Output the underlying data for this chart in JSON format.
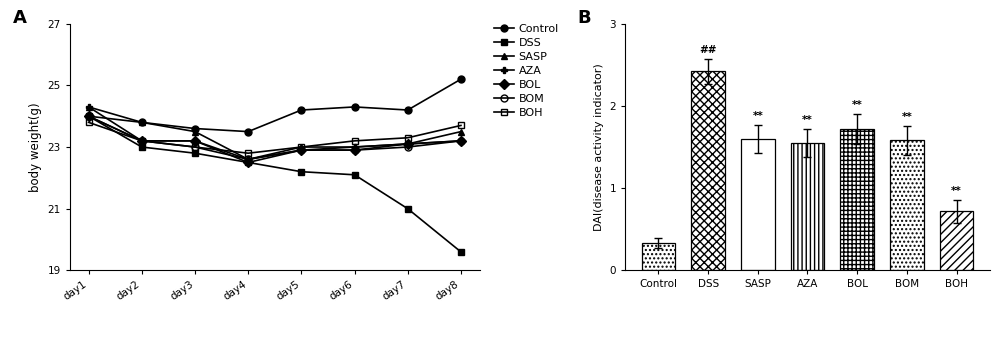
{
  "line_chart": {
    "days": [
      "day1",
      "day2",
      "day3",
      "day4",
      "day5",
      "day6",
      "day7",
      "day8"
    ],
    "series": {
      "Control": [
        24.0,
        23.8,
        23.6,
        23.5,
        24.2,
        24.3,
        24.2,
        25.2
      ],
      "DSS": [
        24.0,
        23.0,
        22.8,
        22.5,
        22.2,
        22.1,
        21.0,
        19.6
      ],
      "SASP": [
        24.3,
        23.8,
        23.5,
        22.6,
        23.0,
        23.0,
        23.1,
        23.5
      ],
      "AZA": [
        24.3,
        23.2,
        23.2,
        22.6,
        22.9,
        23.0,
        23.1,
        23.2
      ],
      "BOL": [
        24.0,
        23.2,
        23.2,
        22.5,
        22.9,
        22.9,
        23.1,
        23.2
      ],
      "BOM": [
        24.0,
        23.2,
        23.0,
        22.6,
        22.9,
        22.9,
        23.0,
        23.2
      ],
      "BOH": [
        23.8,
        23.2,
        23.0,
        22.8,
        23.0,
        23.2,
        23.3,
        23.7
      ]
    },
    "markers": [
      "o",
      "s",
      "^",
      "P",
      "D",
      "o",
      "s"
    ],
    "fillstyle": [
      "full",
      "full",
      "full",
      "full",
      "full",
      "none",
      "none"
    ],
    "series_order": [
      "Control",
      "DSS",
      "SASP",
      "AZA",
      "BOL",
      "BOM",
      "BOH"
    ],
    "ylim": [
      19,
      27
    ],
    "yticks": [
      19,
      21,
      23,
      25,
      27
    ],
    "ylabel": "body weight(g)",
    "label_A": "A"
  },
  "bar_chart": {
    "categories": [
      "Control",
      "DSS",
      "SASP",
      "AZA",
      "BOL",
      "BOM",
      "BOH"
    ],
    "values": [
      0.33,
      2.42,
      1.6,
      1.55,
      1.72,
      1.58,
      0.72
    ],
    "errors": [
      0.06,
      0.15,
      0.17,
      0.17,
      0.18,
      0.18,
      0.14
    ],
    "hatch_patterns": [
      "....",
      "xxxx",
      "====",
      "||||",
      "++++",
      "....",
      "////"
    ],
    "ylim": [
      0,
      3
    ],
    "yticks": [
      0,
      1,
      2,
      3
    ],
    "ylabel": "DAI(disease activity indicator)",
    "label_B": "B",
    "annot_above": {
      "DSS": "##",
      "SASP": "**",
      "AZA": "**",
      "BOL": "**",
      "BOM": "**",
      "BOH": "**"
    }
  }
}
